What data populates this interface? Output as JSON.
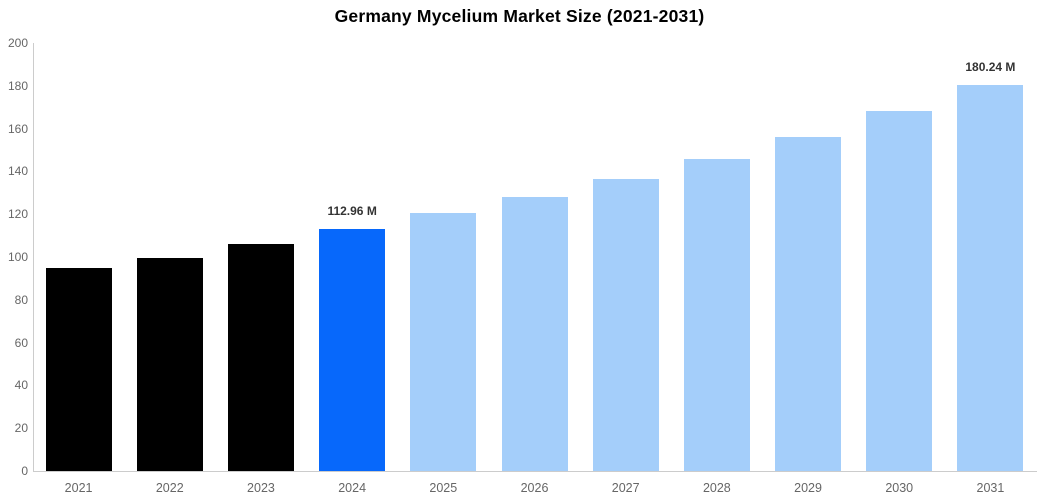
{
  "chart_data": {
    "type": "bar",
    "title": "Germany Mycelium Market Size (2021-2031)",
    "categories": [
      "2021",
      "2022",
      "2023",
      "2024",
      "2025",
      "2026",
      "2027",
      "2028",
      "2029",
      "2030",
      "2031"
    ],
    "values": [
      94.9,
      99.7,
      105.9,
      112.96,
      120.4,
      128.2,
      136.6,
      146.0,
      156.2,
      168.0,
      180.24
    ],
    "bar_roles": [
      "historical",
      "historical",
      "historical",
      "current",
      "forecast",
      "forecast",
      "forecast",
      "forecast",
      "forecast",
      "forecast",
      "forecast"
    ],
    "data_labels": {
      "3": "112.96 M",
      "10": "180.24 M"
    },
    "xlabel": "",
    "ylabel": "",
    "ylim": [
      0,
      200
    ],
    "ytick_step": 20,
    "yticks": [
      "0",
      "20",
      "40",
      "60",
      "80",
      "100",
      "120",
      "140",
      "160",
      "180",
      "200"
    ],
    "grid": false,
    "legend": false,
    "colors": {
      "historical": "#000000",
      "current": "#0768FB",
      "forecast": "#A4CEFA",
      "axis_line": "#cccccc",
      "tick_label": "#666666",
      "data_label": "#333333",
      "title": "#000000",
      "background": "#ffffff"
    }
  }
}
